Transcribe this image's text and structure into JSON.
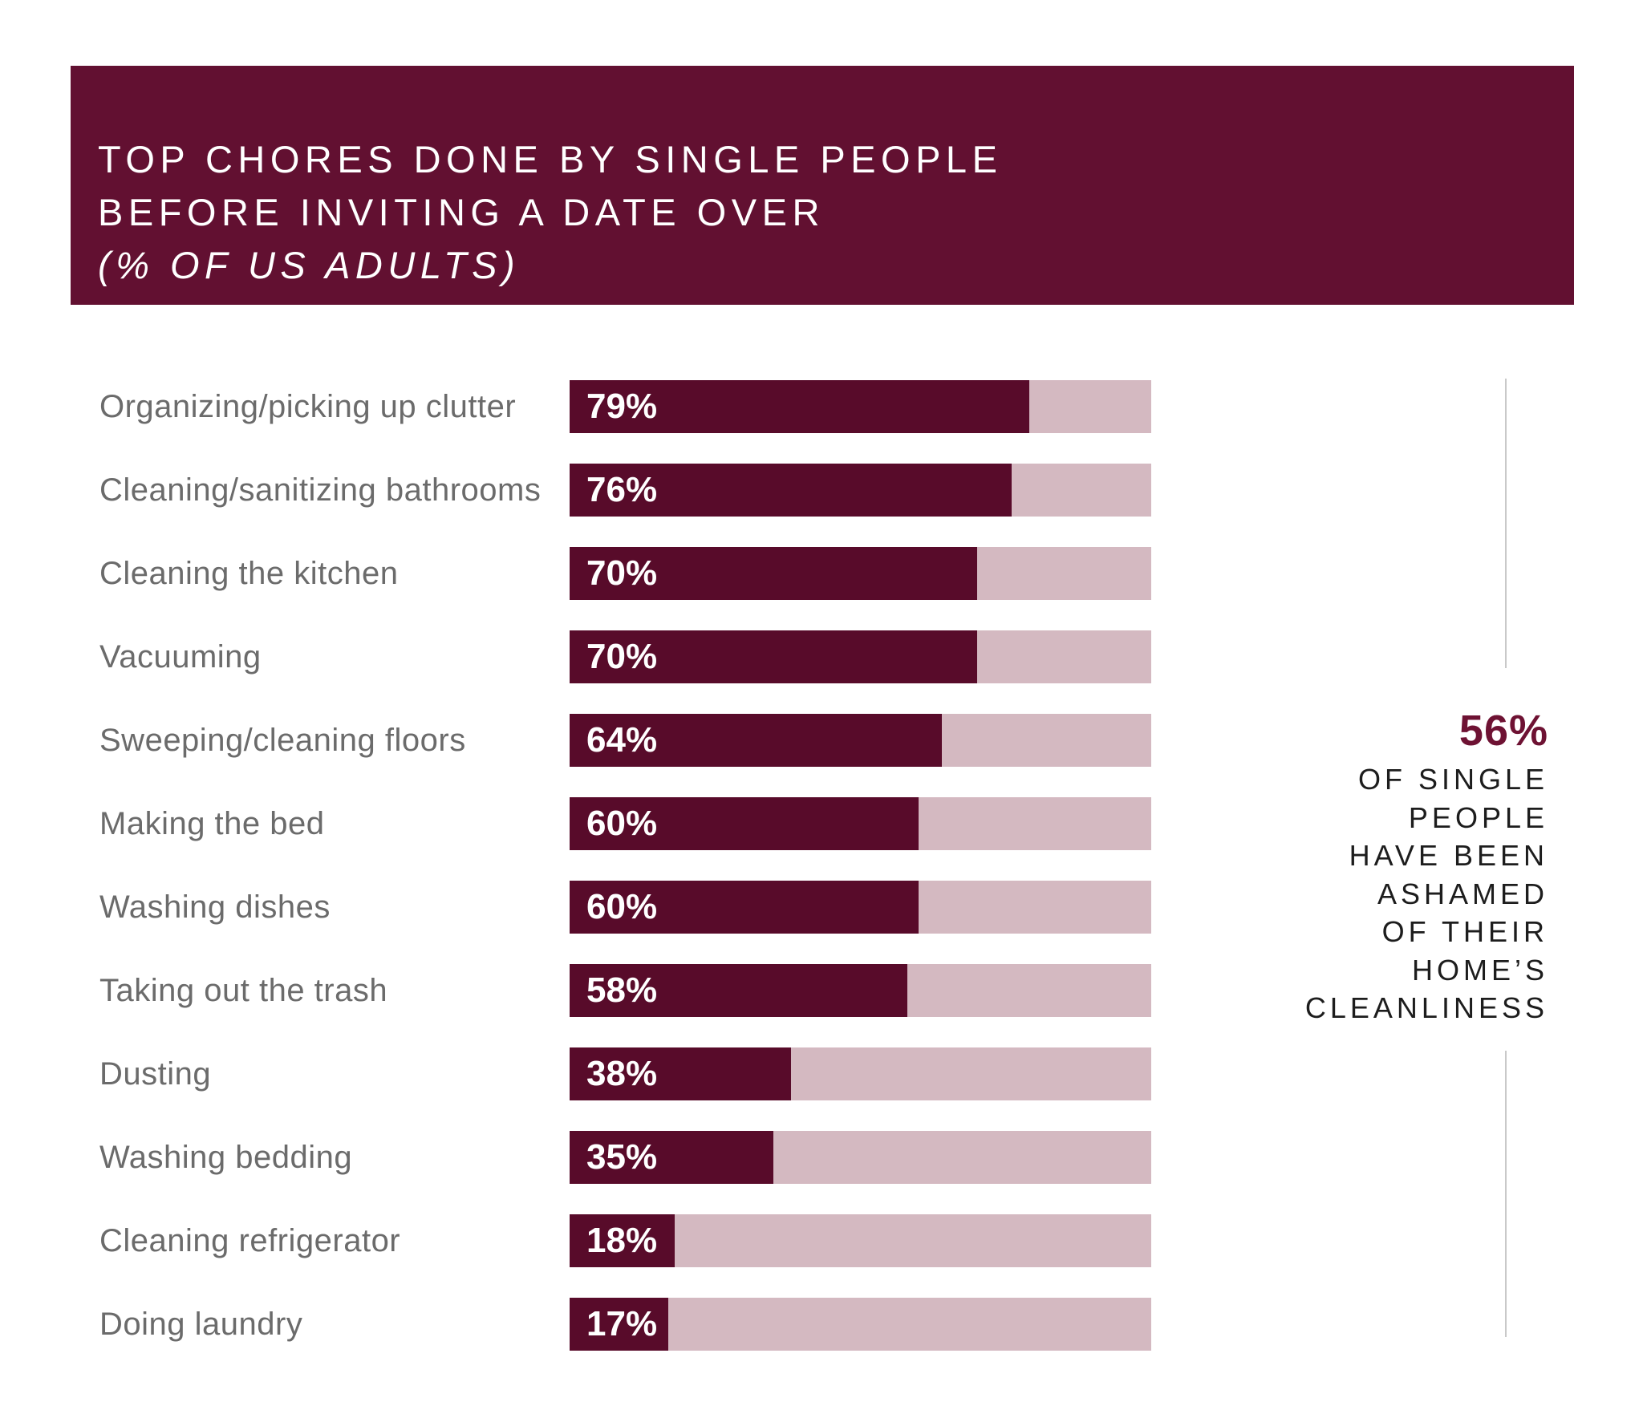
{
  "header": {
    "title_line1": "TOP CHORES DONE BY SINGLE PEOPLE",
    "title_line2": "BEFORE INVITING A DATE OVER",
    "subtitle": "(% OF US ADULTS)"
  },
  "chart_data": {
    "type": "bar",
    "orientation": "horizontal",
    "title": "TOP CHORES DONE BY SINGLE PEOPLE BEFORE INVITING A DATE OVER (% OF US ADULTS)",
    "xlabel": "",
    "ylabel": "",
    "xlim": [
      0,
      100
    ],
    "grid": false,
    "legend_position": "none",
    "value_suffix": "%",
    "categories": [
      "Organizing/picking up clutter",
      "Cleaning/sanitizing bathrooms",
      "Cleaning the kitchen",
      "Vacuuming",
      "Sweeping/cleaning floors",
      "Making the bed",
      "Washing dishes",
      "Taking out the trash",
      "Dusting",
      "Washing bedding",
      "Cleaning refrigerator",
      "Doing laundry"
    ],
    "values": [
      79,
      76,
      70,
      70,
      64,
      60,
      60,
      58,
      38,
      35,
      18,
      17
    ],
    "value_labels": [
      "79%",
      "76%",
      "70%",
      "70%",
      "64%",
      "60%",
      "60%",
      "58%",
      "38%",
      "35%",
      "18%",
      "17%"
    ]
  },
  "callout": {
    "stat": "56%",
    "lines": [
      "OF SINGLE",
      "PEOPLE",
      "HAVE BEEN",
      "ASHAMED",
      "OF THEIR",
      "HOME’S",
      "CLEANLINESS"
    ]
  },
  "colors": {
    "header_bg": "#621031",
    "header_text": "#FFFFFF",
    "bar_fill": "#580B2A",
    "bar_track": "#D4B9C1",
    "bar_value_text": "#FFFFFF",
    "category_label": "#6B6B6B",
    "stat": "#6E1233",
    "callout_text": "#1D1D1D",
    "rule": "#C9C9C9",
    "background": "#FFFFFF"
  }
}
